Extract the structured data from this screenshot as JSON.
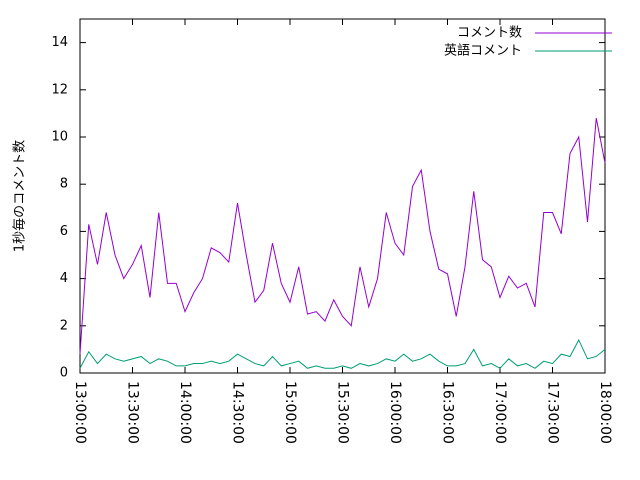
{
  "chart_data": {
    "type": "line",
    "y_label": "1秒毎のコメント数",
    "x": [
      "13:00:00",
      "13:05:00",
      "13:10:00",
      "13:15:00",
      "13:20:00",
      "13:25:00",
      "13:30:00",
      "13:35:00",
      "13:40:00",
      "13:45:00",
      "13:50:00",
      "13:55:00",
      "14:00:00",
      "14:05:00",
      "14:10:00",
      "14:15:00",
      "14:20:00",
      "14:25:00",
      "14:30:00",
      "14:35:00",
      "14:40:00",
      "14:45:00",
      "14:50:00",
      "14:55:00",
      "15:00:00",
      "15:05:00",
      "15:10:00",
      "15:15:00",
      "15:20:00",
      "15:25:00",
      "15:30:00",
      "15:35:00",
      "15:40:00",
      "15:45:00",
      "15:50:00",
      "15:55:00",
      "16:00:00",
      "16:05:00",
      "16:10:00",
      "16:15:00",
      "16:20:00",
      "16:25:00",
      "16:30:00",
      "16:35:00",
      "16:40:00",
      "16:45:00",
      "16:50:00",
      "16:55:00",
      "17:00:00",
      "17:05:00",
      "17:10:00",
      "17:15:00",
      "17:20:00",
      "17:25:00",
      "17:30:00",
      "17:35:00",
      "17:40:00",
      "17:45:00",
      "17:50:00",
      "17:55:00",
      "18:00:00"
    ],
    "series": [
      {
        "name": "コメント数",
        "color": "#9400d3",
        "values": [
          0.8,
          6.3,
          4.6,
          6.8,
          5.0,
          4.0,
          4.6,
          5.4,
          3.2,
          6.8,
          3.8,
          3.8,
          2.6,
          3.4,
          4.0,
          5.3,
          5.1,
          4.7,
          7.2,
          5.0,
          3.0,
          3.5,
          5.5,
          3.8,
          3.0,
          4.5,
          2.5,
          2.6,
          2.2,
          3.1,
          2.4,
          2.0,
          4.5,
          2.8,
          4.0,
          6.8,
          5.5,
          5.0,
          7.9,
          8.6,
          6.0,
          4.4,
          4.2,
          2.4,
          4.5,
          7.7,
          4.8,
          4.5,
          3.2,
          4.1,
          3.6,
          3.8,
          2.8,
          6.8,
          6.8,
          5.9,
          9.3,
          10.0,
          6.4,
          10.8,
          8.9
        ]
      },
      {
        "name": "英語コメント",
        "color": "#009e73",
        "values": [
          0.2,
          0.9,
          0.4,
          0.8,
          0.6,
          0.5,
          0.6,
          0.7,
          0.4,
          0.6,
          0.5,
          0.3,
          0.3,
          0.4,
          0.4,
          0.5,
          0.4,
          0.5,
          0.8,
          0.6,
          0.4,
          0.3,
          0.7,
          0.3,
          0.4,
          0.5,
          0.2,
          0.3,
          0.2,
          0.2,
          0.3,
          0.2,
          0.4,
          0.3,
          0.4,
          0.6,
          0.5,
          0.8,
          0.5,
          0.6,
          0.8,
          0.5,
          0.3,
          0.3,
          0.4,
          1.0,
          0.3,
          0.4,
          0.2,
          0.6,
          0.3,
          0.4,
          0.2,
          0.5,
          0.4,
          0.8,
          0.7,
          1.4,
          0.6,
          0.7,
          1.0
        ]
      }
    ],
    "xlim": [
      "13:00:00",
      "18:00:00"
    ],
    "xticks": [
      "13:00:00",
      "13:30:00",
      "14:00:00",
      "14:30:00",
      "15:00:00",
      "15:30:00",
      "16:00:00",
      "16:30:00",
      "17:00:00",
      "17:30:00",
      "18:00:00"
    ],
    "ylim": [
      0,
      15
    ],
    "yticks": [
      0,
      2,
      4,
      6,
      8,
      10,
      12,
      14
    ],
    "legend": "top-right"
  }
}
